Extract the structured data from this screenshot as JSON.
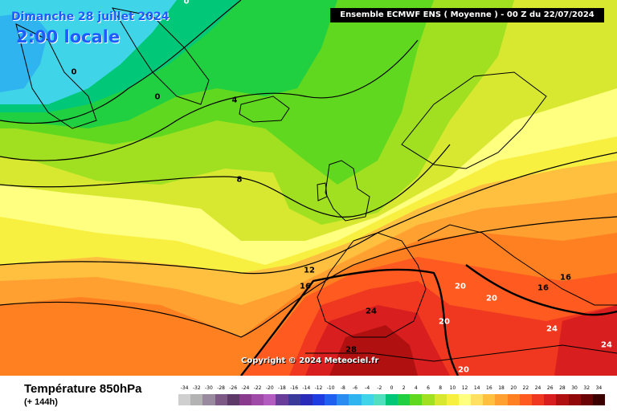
{
  "map": {
    "date_title": "Dimanche 28 juillet 2024",
    "time_title": "2:00 locale",
    "run_info": "Ensemble ECMWF ENS  ( Moyenne )  -  00 Z du 22/07/2024",
    "copyright": "Copyright © 2024 Meteociel.fr",
    "isotherm_labels": [
      "0",
      "0",
      "0",
      "4",
      "8",
      "12",
      "16",
      "16",
      "20",
      "20",
      "20",
      "20",
      "24",
      "24",
      "24",
      "28"
    ]
  },
  "legend": {
    "variable": "Température 850hPa",
    "lead_time": "(+ 144h)",
    "scale_ticks": [
      "-34",
      "-32",
      "-30",
      "-28",
      "-26",
      "-24",
      "-22",
      "-20",
      "-18",
      "-16",
      "-14",
      "-12",
      "-10",
      "-8",
      "-6",
      "-4",
      "-2",
      "0",
      "2",
      "4",
      "6",
      "8",
      "10",
      "12",
      "14",
      "16",
      "18",
      "20",
      "22",
      "24",
      "26",
      "28",
      "30",
      "32",
      "34"
    ],
    "scale_colors": [
      "#cfcfcf",
      "#b3b3b3",
      "#9a8aa0",
      "#7d5a86",
      "#5e3a68",
      "#8a3a8c",
      "#a04aa8",
      "#b25cc0",
      "#6a3c9a",
      "#3a3a9a",
      "#2a2ab8",
      "#1e3ce0",
      "#2060f0",
      "#2a8cf0",
      "#30b4f0",
      "#40d4e8",
      "#50e0c0",
      "#00c878",
      "#20d040",
      "#60d820",
      "#a0e020",
      "#d8e830",
      "#f8f040",
      "#ffff80",
      "#ffe060",
      "#ffc040",
      "#ffa030",
      "#ff8020",
      "#ff5a20",
      "#f03820",
      "#d81e1e",
      "#b01010",
      "#900808",
      "#6a0404",
      "#3a0000"
    ]
  }
}
